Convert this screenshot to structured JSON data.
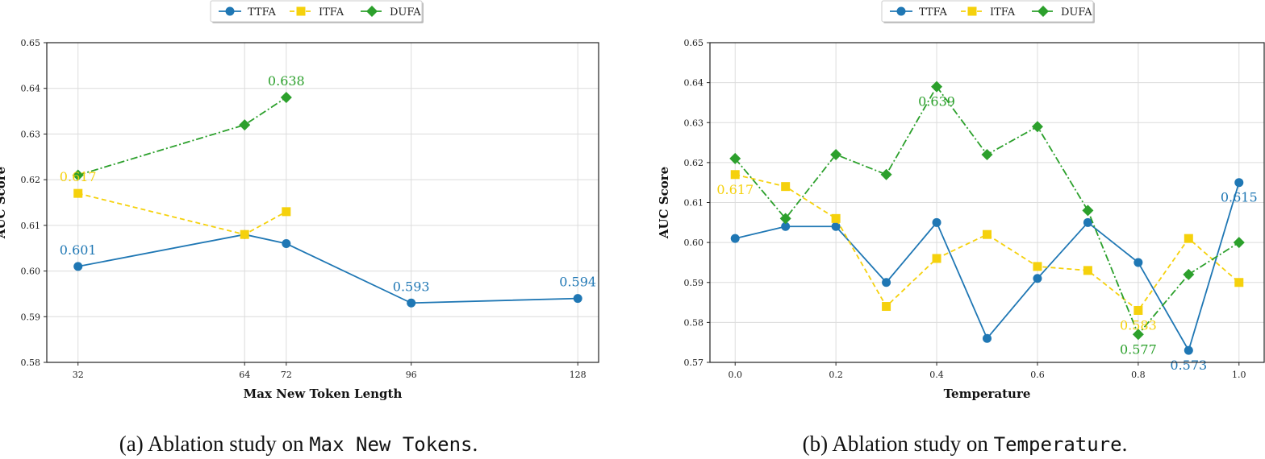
{
  "colors": {
    "TTFA": "#1f77b4",
    "ITFA": "#f5d10c",
    "DUFA": "#2ca02c"
  },
  "captions": [
    {
      "prefix": "(a) Ablation study on ",
      "code": "Max New Tokens",
      "suffix": "."
    },
    {
      "prefix": "(b) Ablation study on ",
      "code": "Temperature",
      "suffix": "."
    }
  ],
  "chart_data": [
    {
      "type": "line",
      "xlabel": "Max New Token Length",
      "ylabel": "AUC Score",
      "xlim": [
        26,
        132
      ],
      "ylim": [
        0.58,
        0.65
      ],
      "xticks": [
        32,
        64,
        72,
        96,
        128
      ],
      "yticks": [
        0.58,
        0.59,
        0.6,
        0.61,
        0.62,
        0.63,
        0.64,
        0.65
      ],
      "xtick_labels": [
        "32",
        "64",
        "72",
        "96",
        "128"
      ],
      "ytick_labels": [
        "0.58",
        "0.59",
        "0.60",
        "0.61",
        "0.62",
        "0.63",
        "0.64",
        "0.65"
      ],
      "grid": true,
      "legend": "top-center",
      "series": [
        {
          "name": "TTFA",
          "marker": "circle",
          "linestyle": "solid",
          "x": [
            32,
            64,
            72,
            96,
            128
          ],
          "y": [
            0.601,
            0.608,
            0.606,
            0.593,
            0.594
          ]
        },
        {
          "name": "ITFA",
          "marker": "square",
          "linestyle": "dashed",
          "x": [
            32,
            64,
            72
          ],
          "y": [
            0.617,
            0.608,
            0.613
          ]
        },
        {
          "name": "DUFA",
          "marker": "diamond",
          "linestyle": "dashdot",
          "x": [
            32,
            64,
            72
          ],
          "y": [
            0.621,
            0.632,
            0.638
          ]
        }
      ],
      "annotations": [
        {
          "series": "TTFA",
          "x": 32,
          "y": 0.601,
          "text": "0.601",
          "pos": "above"
        },
        {
          "series": "TTFA",
          "x": 96,
          "y": 0.593,
          "text": "0.593",
          "pos": "above"
        },
        {
          "series": "TTFA",
          "x": 128,
          "y": 0.594,
          "text": "0.594",
          "pos": "above"
        },
        {
          "series": "ITFA",
          "x": 32,
          "y": 0.617,
          "text": "0.617",
          "pos": "above"
        },
        {
          "series": "DUFA",
          "x": 72,
          "y": 0.638,
          "text": "0.638",
          "pos": "above"
        }
      ]
    },
    {
      "type": "line",
      "xlabel": "Temperature",
      "ylabel": "AUC Score",
      "xlim": [
        -0.05,
        1.05
      ],
      "ylim": [
        0.57,
        0.65
      ],
      "xticks": [
        0.0,
        0.2,
        0.4,
        0.6,
        0.8,
        1.0
      ],
      "yticks": [
        0.57,
        0.58,
        0.59,
        0.6,
        0.61,
        0.62,
        0.63,
        0.64,
        0.65
      ],
      "xtick_labels": [
        "0.0",
        "0.2",
        "0.4",
        "0.6",
        "0.8",
        "1.0"
      ],
      "ytick_labels": [
        "0.57",
        "0.58",
        "0.59",
        "0.60",
        "0.61",
        "0.62",
        "0.63",
        "0.64",
        "0.65"
      ],
      "grid": true,
      "legend": "top-center",
      "series": [
        {
          "name": "TTFA",
          "marker": "circle",
          "linestyle": "solid",
          "x": [
            0.0,
            0.1,
            0.2,
            0.3,
            0.4,
            0.5,
            0.6,
            0.7,
            0.8,
            0.9,
            1.0
          ],
          "y": [
            0.601,
            0.604,
            0.604,
            0.59,
            0.605,
            0.576,
            0.591,
            0.605,
            0.595,
            0.573,
            0.615
          ]
        },
        {
          "name": "ITFA",
          "marker": "square",
          "linestyle": "dashed",
          "x": [
            0.0,
            0.1,
            0.2,
            0.3,
            0.4,
            0.5,
            0.6,
            0.7,
            0.8,
            0.9,
            1.0
          ],
          "y": [
            0.617,
            0.614,
            0.606,
            0.584,
            0.596,
            0.602,
            0.594,
            0.593,
            0.583,
            0.601,
            0.59
          ]
        },
        {
          "name": "DUFA",
          "marker": "diamond",
          "linestyle": "dashdot",
          "x": [
            0.0,
            0.1,
            0.2,
            0.3,
            0.4,
            0.5,
            0.6,
            0.7,
            0.8,
            0.9,
            1.0
          ],
          "y": [
            0.621,
            0.606,
            0.622,
            0.617,
            0.639,
            0.622,
            0.629,
            0.608,
            0.577,
            0.592,
            0.6
          ]
        }
      ],
      "annotations": [
        {
          "series": "DUFA",
          "x": 0.4,
          "y": 0.639,
          "text": "0.639",
          "pos": "below"
        },
        {
          "series": "ITFA",
          "x": 0.0,
          "y": 0.617,
          "text": "0.617",
          "pos": "below"
        },
        {
          "series": "ITFA",
          "x": 0.8,
          "y": 0.583,
          "text": "0.583",
          "pos": "below"
        },
        {
          "series": "DUFA",
          "x": 0.8,
          "y": 0.577,
          "text": "0.577",
          "pos": "below"
        },
        {
          "series": "TTFA",
          "x": 0.9,
          "y": 0.573,
          "text": "0.573",
          "pos": "below"
        },
        {
          "series": "TTFA",
          "x": 1.0,
          "y": 0.615,
          "text": "0.615",
          "pos": "below"
        }
      ]
    }
  ]
}
